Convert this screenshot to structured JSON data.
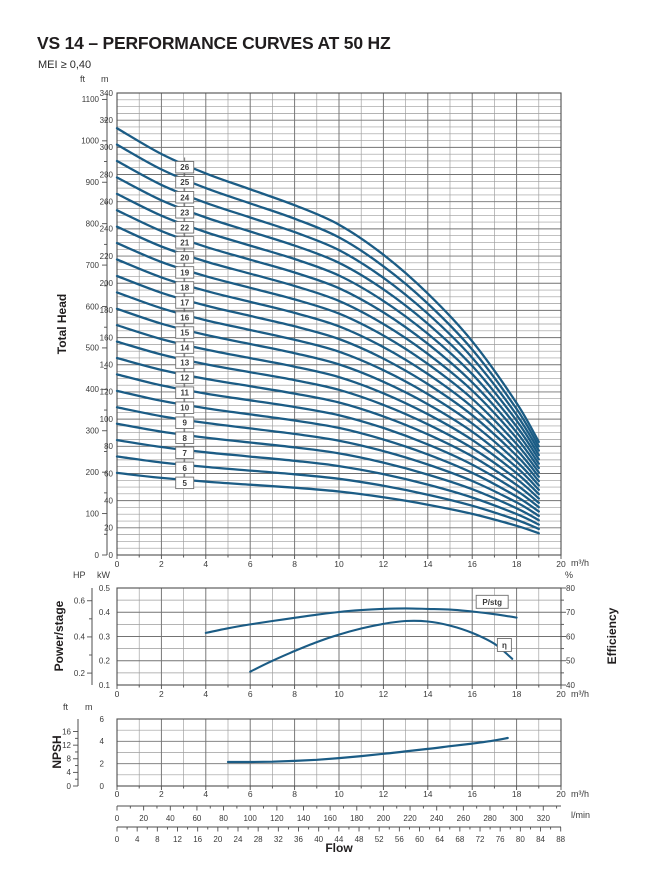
{
  "page": {
    "title": "VS 14 – PERFORMANCE CURVES AT 50 HZ",
    "subtitle": "MEI ≥ 0,40"
  },
  "labels": {
    "total_head": "Total Head",
    "power_stage": "Power/stage",
    "npsh": "NPSH",
    "efficiency": "Efficiency",
    "flow": "Flow"
  },
  "units": {
    "ft": "ft",
    "m": "m",
    "hp": "HP",
    "kw": "kW",
    "percent": "%",
    "m3h": "m³/h",
    "lmin": "l/min"
  },
  "colors": {
    "curve": "#1b5c85",
    "grid_minor": "#9c9c9c",
    "grid_major": "#737373",
    "frame": "#4e4e4e",
    "tick_text": "#3b3b3b"
  },
  "chart_data": [
    {
      "id": "total_head_curves",
      "type": "line",
      "title": "Total Head vs Flow, stages 5–26",
      "x_axis": {
        "label": "Flow",
        "unit": "m³/h",
        "min": 0,
        "max": 20,
        "major_step": 2,
        "minor_step": 1
      },
      "y_axis_m": {
        "unit": "m",
        "min": 0,
        "max": 340,
        "major_step": 20,
        "minor_step": 5
      },
      "y_axis_ft": {
        "unit": "ft",
        "min": 0,
        "max": 1100,
        "major_step": 100,
        "minor_step": 50
      },
      "stages": [
        5,
        6,
        7,
        8,
        9,
        10,
        11,
        12,
        13,
        14,
        15,
        16,
        17,
        18,
        19,
        20,
        21,
        22,
        23,
        24,
        25,
        26
      ],
      "stage_label_flow_m3h": 3.05,
      "per_stage_curve": {
        "note": "total head for stage N = N × head_per_stage_m",
        "flow_m3h": [
          0,
          2,
          4,
          6,
          8,
          10,
          12,
          14,
          16,
          18,
          19
        ],
        "head_per_stage_m": [
          12.08,
          11.35,
          10.8,
          10.35,
          9.9,
          9.35,
          8.5,
          7.4,
          6.05,
          4.3,
          3.2
        ]
      }
    },
    {
      "id": "power_efficiency",
      "type": "line",
      "title": "Power/stage and Efficiency vs Flow",
      "x_axis": {
        "unit": "m³/h",
        "min": 0,
        "max": 20,
        "major_step": 2,
        "minor_step": 1
      },
      "y_axis_kw": {
        "unit": "kW",
        "min": 0.1,
        "max": 0.5,
        "major_step": 0.1,
        "minor_step": 0.05
      },
      "y_axis_hp": {
        "unit": "HP",
        "labeled_ticks": [
          0.2,
          0.4,
          0.6
        ],
        "minor_step": 0.1,
        "kw_per_hp": 0.7457
      },
      "y_axis_pct": {
        "unit": "%",
        "min": 40,
        "max": 80,
        "major_step": 10,
        "minor_step": 5,
        "side": "right"
      },
      "series": [
        {
          "name": "P/stg",
          "axis": "kw",
          "x": [
            4,
            5,
            6,
            7,
            8,
            9,
            10,
            11,
            12,
            13,
            14,
            15,
            16,
            17,
            18
          ],
          "y": [
            0.315,
            0.334,
            0.35,
            0.364,
            0.377,
            0.39,
            0.401,
            0.409,
            0.414,
            0.416,
            0.414,
            0.411,
            0.403,
            0.392,
            0.378
          ],
          "label": "P/stg",
          "label_at": {
            "x": 16.9,
            "kw": 0.443
          }
        },
        {
          "name": "η",
          "axis": "pct",
          "x": [
            6,
            7,
            8,
            9,
            10,
            11,
            12,
            13,
            14,
            15,
            16,
            17,
            17.8
          ],
          "y": [
            45.5,
            50,
            54,
            57.7,
            60.8,
            63.3,
            65.2,
            66.4,
            66.2,
            64.5,
            61.5,
            57,
            50.8
          ],
          "label": "η",
          "label_at": {
            "x": 17.45,
            "pct": 56.5
          }
        }
      ]
    },
    {
      "id": "npsh",
      "type": "line",
      "title": "NPSH vs Flow",
      "x_axis": {
        "unit": "m³/h",
        "min": 0,
        "max": 20,
        "major_step": 2,
        "minor_step": 1
      },
      "y_axis_m": {
        "unit": "m",
        "min": 0,
        "max": 6,
        "major_step": 2,
        "minor_step": 1
      },
      "y_axis_ft": {
        "unit": "ft",
        "labeled_ticks": [
          0,
          4,
          8,
          12,
          16
        ],
        "minor_step": 2
      },
      "series": [
        {
          "name": "NPSH",
          "axis": "m",
          "x": [
            5,
            6,
            7,
            8,
            9,
            10,
            11,
            12,
            13,
            14,
            15,
            16,
            17,
            17.6
          ],
          "y": [
            2.15,
            2.15,
            2.18,
            2.25,
            2.35,
            2.5,
            2.68,
            2.88,
            3.1,
            3.32,
            3.56,
            3.8,
            4.08,
            4.3
          ]
        }
      ]
    },
    {
      "id": "bottom_flow_scales",
      "type": "axis-scales",
      "scales": [
        {
          "unit": "l/min",
          "min": 0,
          "max": 333.3,
          "label_step": 20,
          "minor_step": 10,
          "last_label": 320
        },
        {
          "unit": "",
          "min": 0,
          "max": 88.06,
          "label_step": 4,
          "minor_step": 2,
          "last_label": 88
        }
      ]
    }
  ]
}
